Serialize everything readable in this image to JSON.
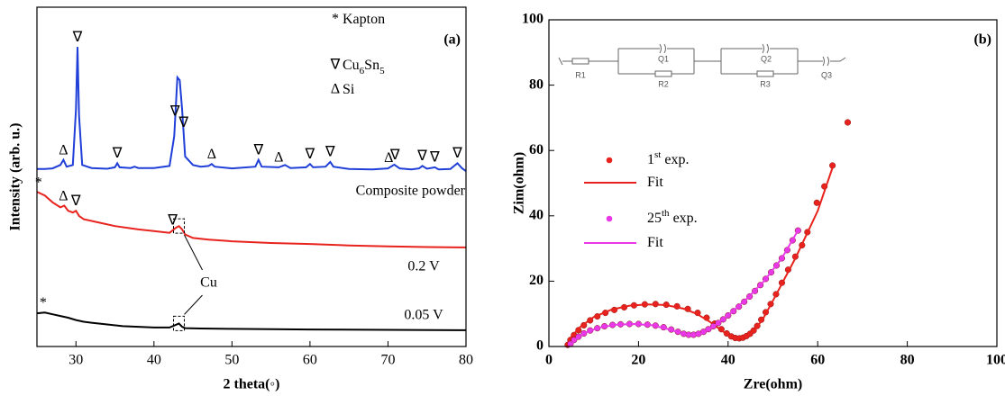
{
  "chart_data": [
    {
      "type": "line",
      "title": "(a)",
      "xlabel": "2 theta(◦)",
      "ylabel": "Intensity (arb. u.)",
      "xlim": [
        25,
        80
      ],
      "xticks": [
        30,
        40,
        50,
        60,
        70,
        80
      ],
      "ylim": [
        0,
        100
      ],
      "legend": [
        {
          "symbol": "*",
          "label": [
            {
              "text": "Kapton"
            }
          ]
        },
        {
          "symbol": "∇",
          "label": [
            {
              "text": "Cu"
            },
            {
              "text": "6",
              "sub": true
            },
            {
              "text": "Sn"
            },
            {
              "text": "5",
              "sub": true
            }
          ]
        },
        {
          "symbol": "Δ",
          "label": [
            {
              "text": "Si"
            }
          ]
        }
      ],
      "annotation": {
        "text": "Cu",
        "x": 43.2
      },
      "series": [
        {
          "name": "Composite powder",
          "color": "#1f3fd8",
          "x": [
            25,
            26,
            27,
            28,
            28.4,
            28.8,
            29.6,
            30.0,
            30.2,
            30.4,
            30.8,
            32,
            34,
            35,
            35.3,
            35.6,
            37,
            37.5,
            38,
            40,
            42,
            42.6,
            43.0,
            43.3,
            43.6,
            44,
            45,
            46,
            47,
            47.4,
            47.8,
            50,
            53,
            53.4,
            53.8,
            56,
            56.8,
            57.5,
            59.5,
            60,
            60.4,
            62,
            62.6,
            63,
            65,
            68,
            70,
            70.8,
            71.5,
            73,
            74,
            74.4,
            75,
            76,
            76.5,
            78,
            78.9,
            79.5,
            80
          ],
          "values": [
            52.3,
            52.3,
            52.5,
            53.5,
            55,
            53,
            53.5,
            70,
            88.3,
            68,
            53.5,
            52.6,
            52.4,
            52.8,
            54,
            52.8,
            52.6,
            53,
            52.6,
            52.6,
            53.2,
            62,
            79.3,
            78.5,
            70,
            56,
            53.5,
            53,
            53.2,
            53.8,
            53,
            52.5,
            53,
            55,
            53,
            52.8,
            53.5,
            52.6,
            52.8,
            53.8,
            52.8,
            53,
            54.4,
            53,
            52.3,
            52.2,
            52.5,
            53.6,
            52.5,
            52.2,
            52.5,
            53.2,
            52.4,
            52.8,
            52.2,
            52.3,
            54,
            52.5,
            51.7
          ],
          "markers": [
            {
              "symbol": "Δ",
              "x": 28.4
            },
            {
              "symbol": "∇",
              "x": 30.2
            },
            {
              "symbol": "∇",
              "x": 35.3
            },
            {
              "symbol": "∇",
              "x": 42.7
            },
            {
              "symbol": "∇",
              "x": 43.8
            },
            {
              "symbol": "Δ",
              "x": 47.4
            },
            {
              "symbol": "∇",
              "x": 53.4
            },
            {
              "symbol": "Δ",
              "x": 56.0
            },
            {
              "symbol": "∇",
              "x": 60.0
            },
            {
              "symbol": "∇",
              "x": 62.6
            },
            {
              "symbol": "Δ",
              "x": 70.1
            },
            {
              "symbol": "∇",
              "x": 70.9
            },
            {
              "symbol": "∇",
              "x": 74.4
            },
            {
              "symbol": "∇",
              "x": 76.0
            },
            {
              "symbol": "∇",
              "x": 78.9
            }
          ]
        },
        {
          "name": "0.2 V",
          "color": "#e8231e",
          "x": [
            25,
            26,
            27,
            28,
            28.5,
            29,
            29.6,
            30,
            30.4,
            31,
            33,
            35,
            38,
            40,
            42,
            42.8,
            43.2,
            43.6,
            44,
            45,
            47,
            50,
            55,
            60,
            65,
            70,
            75,
            80
          ],
          "values": [
            45.6,
            44.5,
            42.5,
            41,
            41.5,
            40,
            39.5,
            40,
            38.5,
            37.5,
            36.5,
            35.5,
            34.5,
            34,
            33.5,
            35,
            35.5,
            34.5,
            33,
            32,
            31.5,
            31,
            30.5,
            30.2,
            29.8,
            29.5,
            29.3,
            29.2
          ],
          "markers": [
            {
              "symbol": "*",
              "x": 25.2
            },
            {
              "symbol": "Δ",
              "x": 28.4
            },
            {
              "symbol": "∇",
              "x": 30.0
            },
            {
              "symbol": "∇",
              "x": 42.4
            }
          ]
        },
        {
          "name": "0.05 V",
          "color": "#000000",
          "x": [
            25,
            26,
            27,
            28,
            29,
            30,
            31,
            32,
            34,
            36,
            38,
            40,
            42,
            42.8,
            43.2,
            43.6,
            44,
            46,
            50,
            55,
            60,
            70,
            80
          ],
          "values": [
            9.8,
            10,
            9.5,
            9,
            8.5,
            7.8,
            7.3,
            7,
            6.5,
            6,
            5.8,
            5.6,
            5.6,
            6.4,
            6.8,
            5.8,
            5.4,
            5.3,
            5.2,
            5.1,
            5,
            4.9,
            4.8
          ],
          "markers": [
            {
              "symbol": "*",
              "x": 25.8
            }
          ]
        }
      ]
    },
    {
      "type": "scatter",
      "title": "(b)",
      "xlabel": "Zre(ohm)",
      "ylabel": "Zim(ohm)",
      "xlim": [
        0,
        100
      ],
      "xticks": [
        0,
        20,
        40,
        60,
        80,
        100
      ],
      "ylim": [
        0,
        100
      ],
      "yticks": [
        0,
        20,
        40,
        60,
        80,
        100
      ],
      "circuit": [
        "R1",
        "Q1",
        "R2",
        "Q2",
        "R3",
        "Q3"
      ],
      "series": [
        {
          "name": [
            {
              "text": "1"
            },
            {
              "text": "st",
              "sup": true
            },
            {
              "text": " exp."
            }
          ],
          "color": "#e8231e",
          "mode": "markers",
          "x": [
            4.2,
            4.8,
            5.6,
            6.6,
            7.8,
            9.2,
            10.8,
            12.6,
            14.6,
            16.8,
            19,
            21.4,
            23.8,
            26.2,
            28.6,
            31,
            33.2,
            35.2,
            37,
            38.5,
            39.7,
            40.7,
            41.6,
            42.5,
            43.3,
            44.1,
            44.9,
            45.7,
            46.5,
            47.4,
            48.4,
            49.5,
            50.7,
            52,
            53.4,
            55,
            56.5,
            57.7,
            59.8,
            61.5,
            63.3,
            66.7
          ],
          "values": [
            0.5,
            2,
            3.5,
            5,
            6.5,
            8,
            9.2,
            10.3,
            11.2,
            12,
            12.6,
            12.9,
            13,
            12.8,
            12.3,
            11.5,
            10.3,
            8.8,
            7,
            5.3,
            4,
            3.1,
            2.6,
            2.5,
            2.7,
            3.2,
            3.9,
            4.9,
            6.3,
            8.2,
            10.5,
            13,
            16,
            19.5,
            23.5,
            27.5,
            31,
            35,
            44,
            49,
            55.4,
            68.6
          ]
        },
        {
          "name": [
            {
              "text": "Fit"
            }
          ],
          "color": "#e8231e",
          "mode": "line",
          "x": [
            3.8,
            5,
            7,
            10,
            14,
            18,
            22,
            26,
            30,
            33,
            36,
            38.5,
            40.5,
            42,
            44,
            46,
            48,
            50,
            55,
            60,
            63.5
          ],
          "values": [
            0,
            3,
            6,
            9,
            11.3,
            12.5,
            12.9,
            12.7,
            11.6,
            10,
            7.5,
            5,
            3,
            2.5,
            3.2,
            5,
            9,
            14,
            27,
            41.5,
            55.5
          ]
        },
        {
          "name": [
            {
              "text": "25"
            },
            {
              "text": "th",
              "sup": true
            },
            {
              "text": " exp."
            }
          ],
          "color": "#e838e8",
          "mode": "markers",
          "x": [
            4.8,
            5.6,
            6.6,
            7.8,
            9.2,
            10.8,
            12.4,
            14.2,
            16,
            18,
            20,
            22,
            23.8,
            25.6,
            27.3,
            28.8,
            30.1,
            31.2,
            32.3,
            33.4,
            34.5,
            35.6,
            36.7,
            37.8,
            38.9,
            40,
            41.2,
            42.4,
            43.6,
            44.8,
            46,
            47.2,
            48.4,
            49.6,
            50.8,
            52,
            53.2,
            54.4,
            55.6
          ],
          "values": [
            0.8,
            2,
            3,
            4,
            4.9,
            5.6,
            6.2,
            6.6,
            6.8,
            6.9,
            6.9,
            6.7,
            6.4,
            5.9,
            5.2,
            4.5,
            3.9,
            3.6,
            3.6,
            3.9,
            4.5,
            5.3,
            6.2,
            7.2,
            8.3,
            9.5,
            10.8,
            12.2,
            13.7,
            15.3,
            17,
            18.8,
            20.7,
            22.7,
            24.8,
            27,
            29.5,
            32.5,
            35.5
          ]
        },
        {
          "name": [
            {
              "text": "Fit"
            }
          ],
          "color": "#e838e8",
          "mode": "line",
          "x": [
            4.5,
            6,
            8,
            11,
            15,
            19,
            23,
            27,
            30,
            32,
            34,
            37,
            40,
            44,
            48,
            52,
            55.6
          ],
          "values": [
            0,
            2.3,
            4.2,
            5.7,
            6.7,
            6.9,
            6.5,
            5.2,
            3.8,
            3.5,
            4,
            6.4,
            9.6,
            14.4,
            20,
            27,
            35.5
          ]
        }
      ]
    }
  ]
}
